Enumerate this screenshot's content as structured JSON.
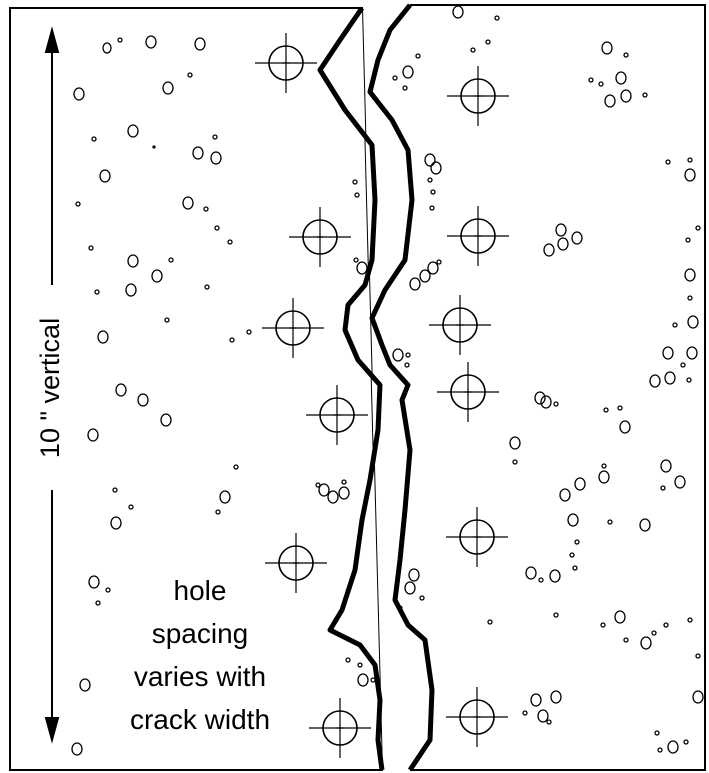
{
  "labels": {
    "vertical_dimension": "10 \" vertical",
    "note": [
      "hole",
      "spacing",
      "varies with",
      "crack width"
    ]
  }
}
